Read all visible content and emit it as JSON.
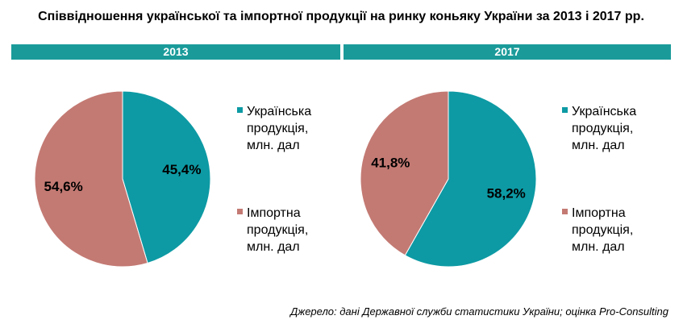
{
  "title": "Співвідношення української та імпортної продукції на ринку коньяку України за 2013 і 2017 рр.",
  "source": "Джерело: дані Державної служби статистики України; оцінка Pro-Consulting",
  "colors": {
    "bar": "#1a9b9a",
    "ukrainian": "#0d9aa4",
    "import": "#c37a73"
  },
  "chart_data": [
    {
      "type": "pie",
      "title": "2013",
      "categories": [
        "Українська продукція, млн. дал",
        "Імпортна продукція, млн. дал"
      ],
      "values": [
        45.4,
        54.6
      ],
      "labels": [
        "45,4%",
        "54,6%"
      ],
      "legend": "right"
    },
    {
      "type": "pie",
      "title": "2017",
      "categories": [
        "Українська продукція, млн. дал",
        "Імпортна продукція, млн. дал"
      ],
      "values": [
        58.2,
        41.8
      ],
      "labels": [
        "58,2%",
        "41,8%"
      ],
      "legend": "right"
    }
  ],
  "legend_items": [
    {
      "label": "Українська\nпродукція,\nмлн. дал",
      "color": "#0d9aa4"
    },
    {
      "label": "Імпортна\nпродукція,\nмлн. дал",
      "color": "#c37a73"
    }
  ]
}
